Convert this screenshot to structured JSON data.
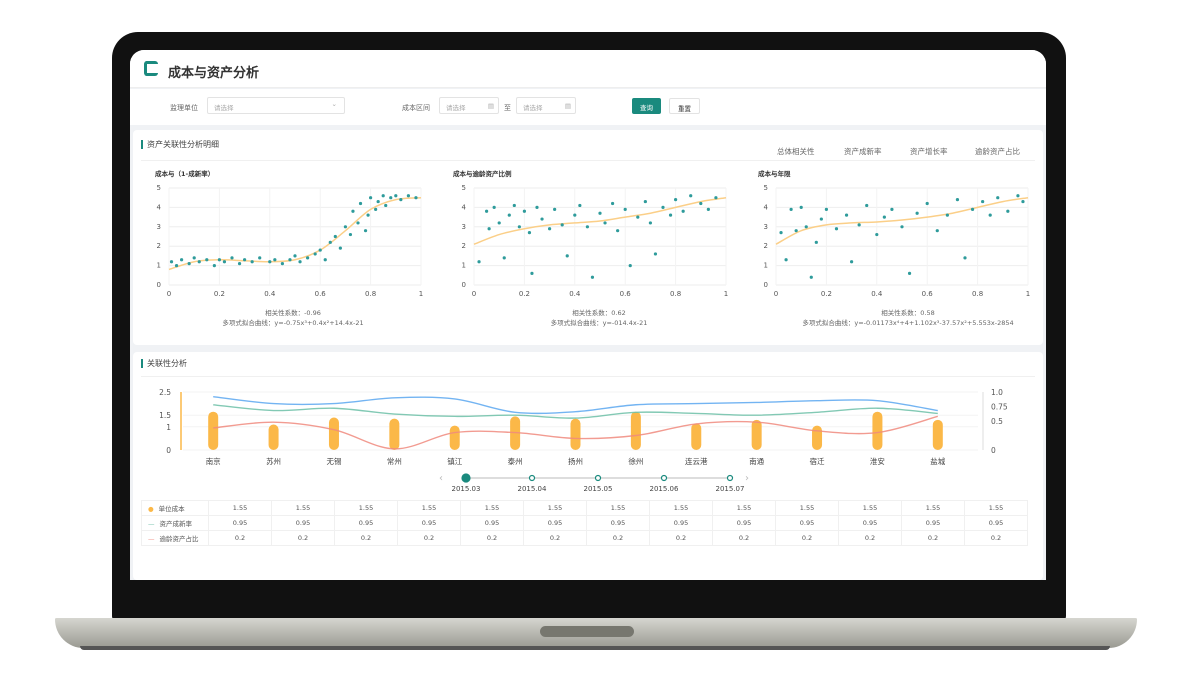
{
  "header": {
    "title": "成本与资产分析"
  },
  "filter": {
    "unit_label": "监理单位",
    "unit_placeholder": "请选择",
    "range_label": "成本区间",
    "from_placeholder": "请选择",
    "to_label": "至",
    "to_placeholder": "请选择",
    "query": "查询",
    "reset": "重置"
  },
  "colors": {
    "accent": "#1a8a7e",
    "bar": "#fbb848",
    "blue": "#5aa7f0",
    "green": "#6cbfa7",
    "red": "#f08a7e",
    "point": "#2e9b9b",
    "fit": "#fbcf88"
  },
  "detail": {
    "title": "资产关联性分析明细",
    "tabs": [
      "总体相关性",
      "资产成新率",
      "资产增长率",
      "逾龄资产占比"
    ]
  },
  "chart_data": [
    {
      "type": "scatter",
      "title": "成本与（1-成新率）",
      "xlim": [
        0,
        1
      ],
      "ylim": [
        0,
        5
      ],
      "xticks": [
        "0",
        "0.2",
        "0.4",
        "0.6",
        "0.8",
        "1"
      ],
      "yticks": [
        "0",
        "1",
        "2",
        "3",
        "4",
        "5"
      ],
      "corr": "相关性系数：-0.96",
      "formula": "多项式拟合曲线：y=-0.75x³+0.4x²+14.4x-21",
      "points": [
        [
          0.01,
          1.2
        ],
        [
          0.03,
          1.0
        ],
        [
          0.05,
          1.3
        ],
        [
          0.08,
          1.1
        ],
        [
          0.1,
          1.4
        ],
        [
          0.12,
          1.2
        ],
        [
          0.15,
          1.3
        ],
        [
          0.18,
          1.0
        ],
        [
          0.2,
          1.3
        ],
        [
          0.22,
          1.2
        ],
        [
          0.25,
          1.4
        ],
        [
          0.28,
          1.1
        ],
        [
          0.3,
          1.3
        ],
        [
          0.33,
          1.2
        ],
        [
          0.36,
          1.4
        ],
        [
          0.4,
          1.2
        ],
        [
          0.42,
          1.3
        ],
        [
          0.45,
          1.1
        ],
        [
          0.48,
          1.3
        ],
        [
          0.5,
          1.5
        ],
        [
          0.52,
          1.2
        ],
        [
          0.55,
          1.4
        ],
        [
          0.58,
          1.6
        ],
        [
          0.6,
          1.8
        ],
        [
          0.62,
          1.3
        ],
        [
          0.64,
          2.2
        ],
        [
          0.66,
          2.5
        ],
        [
          0.68,
          1.9
        ],
        [
          0.7,
          3.0
        ],
        [
          0.72,
          2.6
        ],
        [
          0.73,
          3.8
        ],
        [
          0.75,
          3.2
        ],
        [
          0.76,
          4.2
        ],
        [
          0.78,
          2.8
        ],
        [
          0.79,
          3.6
        ],
        [
          0.8,
          4.5
        ],
        [
          0.82,
          3.9
        ],
        [
          0.83,
          4.3
        ],
        [
          0.85,
          4.6
        ],
        [
          0.86,
          4.1
        ],
        [
          0.88,
          4.5
        ],
        [
          0.9,
          4.6
        ],
        [
          0.92,
          4.4
        ],
        [
          0.95,
          4.6
        ],
        [
          0.98,
          4.5
        ]
      ],
      "fit": [
        [
          0,
          0.8
        ],
        [
          0.1,
          1.2
        ],
        [
          0.2,
          1.3
        ],
        [
          0.3,
          1.25
        ],
        [
          0.4,
          1.2
        ],
        [
          0.5,
          1.3
        ],
        [
          0.6,
          1.8
        ],
        [
          0.7,
          2.8
        ],
        [
          0.8,
          3.9
        ],
        [
          0.9,
          4.4
        ],
        [
          1,
          4.5
        ]
      ]
    },
    {
      "type": "scatter",
      "title": "成本与逾龄资产比例",
      "xlim": [
        0,
        1
      ],
      "ylim": [
        0,
        5
      ],
      "xticks": [
        "0",
        "0.2",
        "0.4",
        "0.6",
        "0.8",
        "1"
      ],
      "yticks": [
        "0",
        "1",
        "2",
        "3",
        "4",
        "5"
      ],
      "corr": "相关性系数：0.62",
      "formula": "多项式拟合曲线：y=-014.4x-21",
      "points": [
        [
          0.02,
          1.2
        ],
        [
          0.05,
          3.8
        ],
        [
          0.06,
          2.9
        ],
        [
          0.08,
          4.0
        ],
        [
          0.1,
          3.2
        ],
        [
          0.12,
          1.4
        ],
        [
          0.14,
          3.6
        ],
        [
          0.16,
          4.1
        ],
        [
          0.18,
          3.0
        ],
        [
          0.2,
          3.8
        ],
        [
          0.22,
          2.7
        ],
        [
          0.25,
          4.0
        ],
        [
          0.27,
          3.4
        ],
        [
          0.3,
          2.9
        ],
        [
          0.32,
          3.9
        ],
        [
          0.35,
          3.1
        ],
        [
          0.37,
          1.5
        ],
        [
          0.4,
          3.6
        ],
        [
          0.42,
          4.1
        ],
        [
          0.45,
          3.0
        ],
        [
          0.47,
          0.4
        ],
        [
          0.5,
          3.7
        ],
        [
          0.52,
          3.2
        ],
        [
          0.55,
          4.2
        ],
        [
          0.57,
          2.8
        ],
        [
          0.6,
          3.9
        ],
        [
          0.62,
          1.0
        ],
        [
          0.65,
          3.5
        ],
        [
          0.68,
          4.3
        ],
        [
          0.7,
          3.2
        ],
        [
          0.72,
          1.6
        ],
        [
          0.75,
          4.0
        ],
        [
          0.78,
          3.6
        ],
        [
          0.8,
          4.4
        ],
        [
          0.83,
          3.8
        ],
        [
          0.86,
          4.6
        ],
        [
          0.9,
          4.2
        ],
        [
          0.93,
          3.9
        ],
        [
          0.96,
          4.5
        ],
        [
          0.23,
          0.6
        ]
      ],
      "fit": [
        [
          0,
          2.1
        ],
        [
          0.1,
          2.6
        ],
        [
          0.2,
          2.9
        ],
        [
          0.3,
          3.1
        ],
        [
          0.4,
          3.2
        ],
        [
          0.5,
          3.3
        ],
        [
          0.6,
          3.5
        ],
        [
          0.7,
          3.7
        ],
        [
          0.8,
          4.0
        ],
        [
          0.9,
          4.3
        ],
        [
          1,
          4.5
        ]
      ]
    },
    {
      "type": "scatter",
      "title": "成本与年限",
      "xlim": [
        0,
        1
      ],
      "ylim": [
        0,
        5
      ],
      "xticks": [
        "0",
        "0.2",
        "0.4",
        "0.6",
        "0.8",
        "1"
      ],
      "yticks": [
        "0",
        "1",
        "2",
        "3",
        "4",
        "5"
      ],
      "corr": "相关性系数：0.58",
      "formula": "多项式拟合曲线：y=-0.01173x⁴+4+1.102x³-37.57x²+5.553x-2854",
      "points": [
        [
          0.02,
          2.7
        ],
        [
          0.04,
          1.3
        ],
        [
          0.06,
          3.9
        ],
        [
          0.08,
          2.8
        ],
        [
          0.1,
          4.0
        ],
        [
          0.12,
          3.0
        ],
        [
          0.14,
          0.4
        ],
        [
          0.16,
          2.2
        ],
        [
          0.18,
          3.4
        ],
        [
          0.2,
          3.9
        ],
        [
          0.24,
          2.9
        ],
        [
          0.28,
          3.6
        ],
        [
          0.3,
          1.2
        ],
        [
          0.33,
          3.1
        ],
        [
          0.36,
          4.1
        ],
        [
          0.4,
          2.6
        ],
        [
          0.43,
          3.5
        ],
        [
          0.46,
          3.9
        ],
        [
          0.5,
          3.0
        ],
        [
          0.53,
          0.6
        ],
        [
          0.56,
          3.7
        ],
        [
          0.6,
          4.2
        ],
        [
          0.64,
          2.8
        ],
        [
          0.68,
          3.6
        ],
        [
          0.72,
          4.4
        ],
        [
          0.75,
          1.4
        ],
        [
          0.78,
          3.9
        ],
        [
          0.82,
          4.3
        ],
        [
          0.85,
          3.6
        ],
        [
          0.88,
          4.5
        ],
        [
          0.92,
          3.8
        ],
        [
          0.96,
          4.6
        ],
        [
          0.98,
          4.3
        ]
      ],
      "fit": [
        [
          0,
          2.1
        ],
        [
          0.1,
          2.8
        ],
        [
          0.2,
          3.1
        ],
        [
          0.3,
          3.2
        ],
        [
          0.4,
          3.25
        ],
        [
          0.5,
          3.35
        ],
        [
          0.6,
          3.5
        ],
        [
          0.7,
          3.7
        ],
        [
          0.8,
          4.0
        ],
        [
          0.9,
          4.3
        ],
        [
          1,
          4.5
        ]
      ]
    },
    {
      "type": "bar+line",
      "title": "关联性分析",
      "categories": [
        "南京",
        "苏州",
        "无锡",
        "常州",
        "镇江",
        "泰州",
        "扬州",
        "徐州",
        "连云港",
        "南通",
        "宿迁",
        "淮安",
        "盐城"
      ],
      "yticks_left": [
        "0",
        "1",
        "1.5",
        "2.5"
      ],
      "ylim_left": [
        0,
        2.5
      ],
      "yticks_right": [
        "0",
        "0.5",
        "0.75",
        "1.0"
      ],
      "ylim_right": [
        0,
        1
      ],
      "series": [
        {
          "name": "单位成本",
          "type": "bar",
          "axis": "left",
          "values": [
            1.65,
            1.1,
            1.4,
            1.35,
            1.05,
            1.45,
            1.35,
            1.65,
            1.15,
            1.3,
            1.05,
            1.65,
            1.3
          ]
        },
        {
          "type": "line",
          "axis": "right",
          "color": "blue",
          "values": [
            0.92,
            0.8,
            0.8,
            0.9,
            0.88,
            0.65,
            0.66,
            0.78,
            0.8,
            0.82,
            0.85,
            0.85,
            0.68
          ]
        },
        {
          "name": "资产成新率",
          "type": "line",
          "axis": "right",
          "color": "green",
          "values": [
            0.78,
            0.68,
            0.72,
            0.62,
            0.58,
            0.6,
            0.55,
            0.65,
            0.63,
            0.6,
            0.65,
            0.72,
            0.63
          ]
        },
        {
          "name": "逾龄资产占比",
          "type": "line",
          "axis": "right",
          "color": "red",
          "values": [
            0.38,
            0.48,
            0.35,
            0.02,
            0.3,
            0.3,
            0.2,
            0.25,
            0.45,
            0.48,
            0.33,
            0.3,
            0.58
          ]
        }
      ],
      "timeline": [
        "2015.03",
        "2015.04",
        "2015.05",
        "2015.06",
        "2015.07"
      ],
      "timeline_selected": 0
    }
  ],
  "relation": {
    "title": "关联性分析"
  },
  "table": {
    "rows": [
      {
        "label": "单位成本",
        "values": [
          "1.55",
          "1.55",
          "1.55",
          "1.55",
          "1.55",
          "1.55",
          "1.55",
          "1.55",
          "1.55",
          "1.55",
          "1.55",
          "1.55",
          "1.55"
        ]
      },
      {
        "label": "资产成新率",
        "values": [
          "0.95",
          "0.95",
          "0.95",
          "0.95",
          "0.95",
          "0.95",
          "0.95",
          "0.95",
          "0.95",
          "0.95",
          "0.95",
          "0.95",
          "0.95"
        ]
      },
      {
        "label": "逾龄资产占比",
        "values": [
          "0.2",
          "0.2",
          "0.2",
          "0.2",
          "0.2",
          "0.2",
          "0.2",
          "0.2",
          "0.2",
          "0.2",
          "0.2",
          "0.2",
          "0.2"
        ]
      }
    ]
  }
}
